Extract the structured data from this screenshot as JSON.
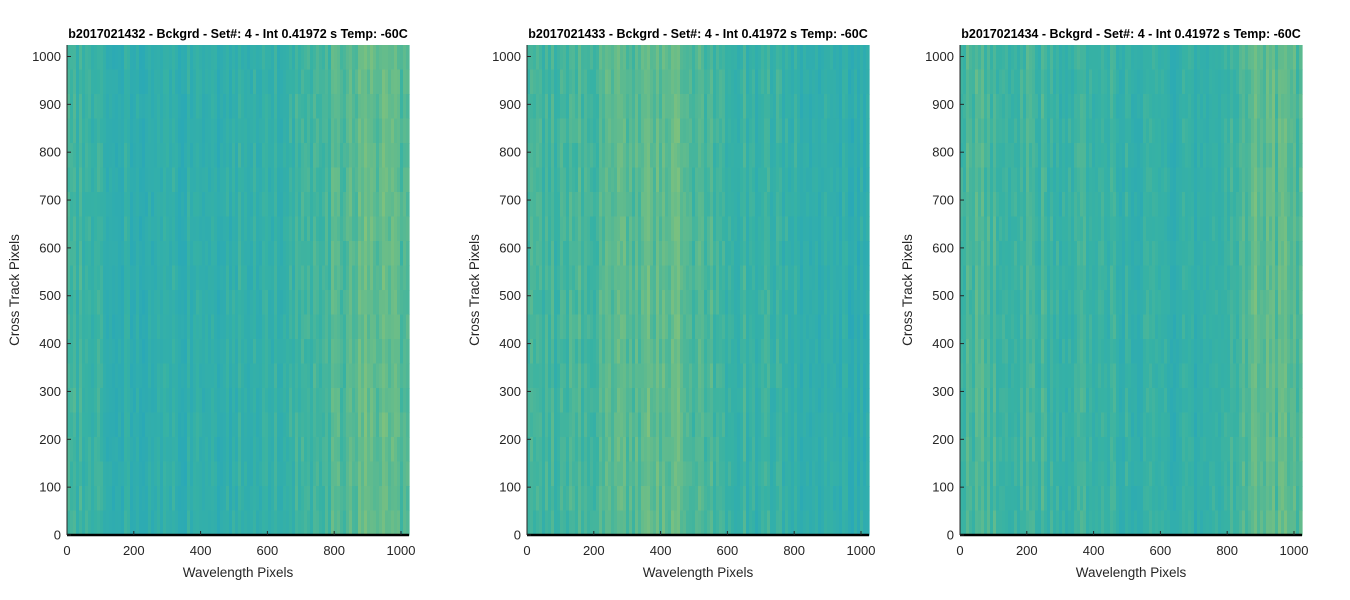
{
  "colors": {
    "low": "#1fa1c7",
    "mid": "#37b2a4",
    "high": "#9fc86c",
    "axis": "#262626",
    "baseline": "#000000"
  },
  "chart_data": [
    {
      "type": "heatmap",
      "title": "b2017021432 - Bckgrd - Set#: 4 - Int 0.41972 s Temp: -60C",
      "xlabel": "Wavelength Pixels",
      "ylabel": "Cross Track Pixels",
      "xlim": [
        0,
        1024
      ],
      "ylim": [
        0,
        1024
      ],
      "xticks": [
        0,
        200,
        400,
        600,
        800,
        1000
      ],
      "yticks": [
        0,
        100,
        200,
        300,
        400,
        500,
        600,
        700,
        800,
        900,
        1000
      ],
      "grid": false,
      "column_profile": {
        "x": [
          0,
          100,
          200,
          300,
          400,
          500,
          600,
          700,
          800,
          900,
          1024
        ],
        "level": [
          0.55,
          0.45,
          0.38,
          0.4,
          0.38,
          0.42,
          0.45,
          0.5,
          0.62,
          0.7,
          0.66
        ]
      }
    },
    {
      "type": "heatmap",
      "title": "b2017021433 - Bckgrd - Set#: 4 - Int 0.41972 s Temp: -60C",
      "xlabel": "Wavelength Pixels",
      "ylabel": "Cross Track Pixels",
      "xlim": [
        0,
        1024
      ],
      "ylim": [
        0,
        1024
      ],
      "xticks": [
        0,
        200,
        400,
        600,
        800,
        1000
      ],
      "yticks": [
        0,
        100,
        200,
        300,
        400,
        500,
        600,
        700,
        800,
        900,
        1000
      ],
      "grid": false,
      "column_profile": {
        "x": [
          0,
          100,
          200,
          300,
          400,
          450,
          500,
          600,
          700,
          800,
          900,
          1024
        ],
        "level": [
          0.5,
          0.52,
          0.58,
          0.66,
          0.7,
          0.7,
          0.62,
          0.52,
          0.46,
          0.44,
          0.4,
          0.36
        ]
      }
    },
    {
      "type": "heatmap",
      "title": "b2017021434 - Bckgrd - Set#: 4 - Int 0.41972 s Temp: -60C",
      "xlabel": "Wavelength Pixels",
      "ylabel": "Cross Track Pixels",
      "xlim": [
        0,
        1024
      ],
      "ylim": [
        0,
        1024
      ],
      "xticks": [
        0,
        200,
        400,
        600,
        800,
        1000
      ],
      "yticks": [
        0,
        100,
        200,
        300,
        400,
        500,
        600,
        700,
        800,
        900,
        1000
      ],
      "grid": false,
      "column_profile": {
        "x": [
          0,
          100,
          200,
          300,
          400,
          500,
          600,
          700,
          800,
          900,
          1024
        ],
        "level": [
          0.6,
          0.58,
          0.55,
          0.5,
          0.5,
          0.44,
          0.42,
          0.4,
          0.55,
          0.7,
          0.62
        ]
      }
    }
  ]
}
